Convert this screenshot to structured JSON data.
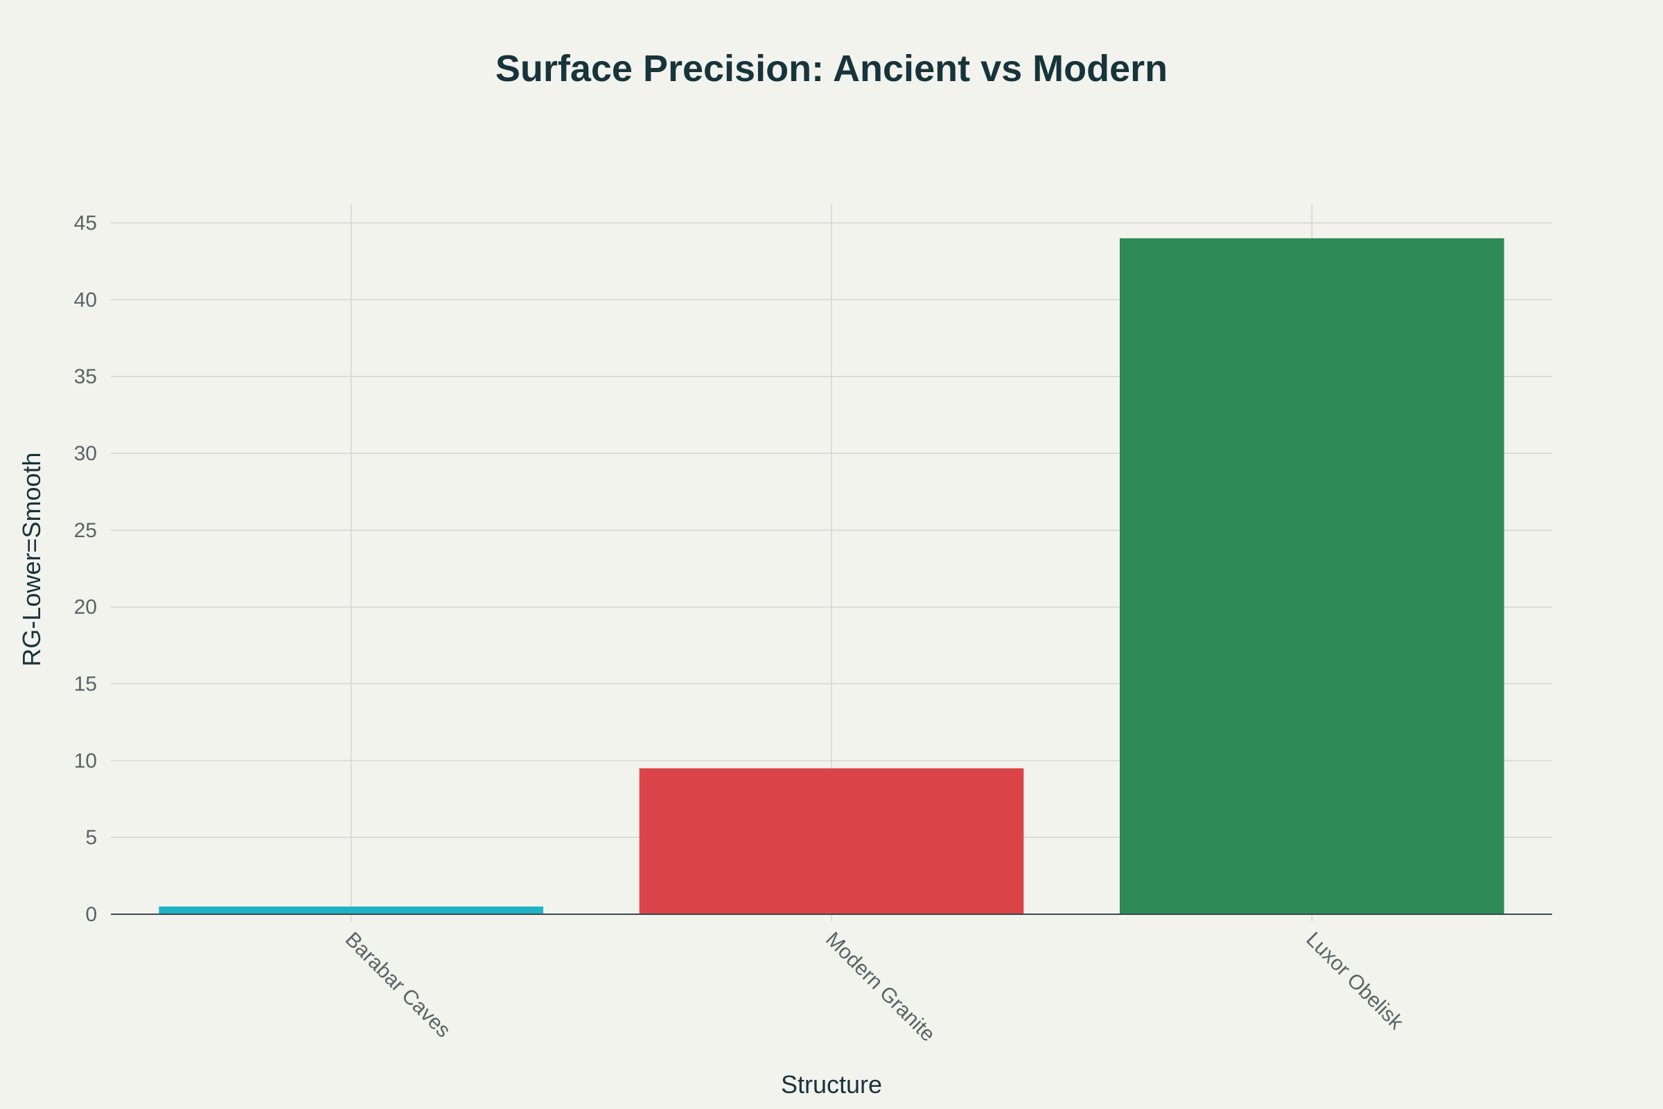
{
  "chart_data": {
    "type": "bar",
    "title": "Surface Precision: Ancient vs Modern",
    "xlabel": "Structure",
    "ylabel": "RG-Lower=Smooth",
    "categories": [
      "Barabar Caves",
      "Modern Granite",
      "Luxor Obelisk"
    ],
    "values": [
      0.5,
      9.5,
      44
    ],
    "colors": [
      "#1fb3c8",
      "#db4549",
      "#2e8b57"
    ],
    "ylim": [
      0,
      46.2
    ],
    "yticks": [
      0,
      5,
      10,
      15,
      20,
      25,
      30,
      35,
      40,
      45
    ],
    "grid": true,
    "legend": "none"
  }
}
